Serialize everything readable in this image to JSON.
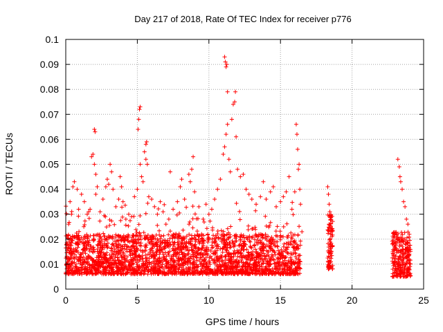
{
  "chart_data": {
    "type": "scatter",
    "title": "Day 217 of 2018, Rate Of TEC Index for receiver p776",
    "xlabel": "GPS time / hours",
    "ylabel": "ROTI / TECUs",
    "xlim": [
      0,
      25
    ],
    "ylim": [
      0,
      0.1
    ],
    "x_ticks": [
      "0",
      "5",
      "10",
      "15",
      "20",
      "25"
    ],
    "y_ticks": [
      "0",
      "0.01",
      "0.02",
      "0.03",
      "0.04",
      "0.05",
      "0.06",
      "0.07",
      "0.08",
      "0.09",
      "0.1"
    ],
    "grid": true,
    "marker": "+",
    "color": "#ff0000",
    "series": [
      {
        "points": [
          [
            0.2,
            0.026
          ],
          [
            0.3,
            0.035
          ],
          [
            0.5,
            0.041
          ],
          [
            0.6,
            0.043
          ],
          [
            0.8,
            0.04
          ],
          [
            0.2,
            0.02
          ],
          [
            0.4,
            0.03
          ],
          [
            0.9,
            0.032
          ],
          [
            1.1,
            0.038
          ],
          [
            1.3,
            0.035
          ],
          [
            1.5,
            0.03
          ],
          [
            1.6,
            0.031
          ],
          [
            1.7,
            0.032
          ],
          [
            1.8,
            0.053
          ],
          [
            1.9,
            0.054
          ],
          [
            2.0,
            0.064
          ],
          [
            2.05,
            0.063
          ],
          [
            2.0,
            0.05
          ],
          [
            2.1,
            0.046
          ],
          [
            2.2,
            0.041
          ],
          [
            2.1,
            0.038
          ],
          [
            2.4,
            0.031
          ],
          [
            2.6,
            0.036
          ],
          [
            2.8,
            0.041
          ],
          [
            2.9,
            0.044
          ],
          [
            3.0,
            0.042
          ],
          [
            3.1,
            0.05
          ],
          [
            3.2,
            0.047
          ],
          [
            3.3,
            0.04
          ],
          [
            3.5,
            0.033
          ],
          [
            3.7,
            0.036
          ],
          [
            3.8,
            0.045
          ],
          [
            3.9,
            0.041
          ],
          [
            4.0,
            0.035
          ],
          [
            4.2,
            0.028
          ],
          [
            4.4,
            0.03
          ],
          [
            4.6,
            0.029
          ],
          [
            4.8,
            0.037
          ],
          [
            5.0,
            0.04
          ],
          [
            5.05,
            0.064
          ],
          [
            5.1,
            0.068
          ],
          [
            5.15,
            0.072
          ],
          [
            5.2,
            0.073
          ],
          [
            5.2,
            0.05
          ],
          [
            5.3,
            0.045
          ],
          [
            5.4,
            0.043
          ],
          [
            5.5,
            0.055
          ],
          [
            5.6,
            0.058
          ],
          [
            5.65,
            0.059
          ],
          [
            5.6,
            0.052
          ],
          [
            5.7,
            0.05
          ],
          [
            5.8,
            0.037
          ],
          [
            6.0,
            0.036
          ],
          [
            6.2,
            0.033
          ],
          [
            6.4,
            0.03
          ],
          [
            6.6,
            0.035
          ],
          [
            6.8,
            0.031
          ],
          [
            7.0,
            0.026
          ],
          [
            7.2,
            0.028
          ],
          [
            7.3,
            0.047
          ],
          [
            7.5,
            0.032
          ],
          [
            7.8,
            0.035
          ],
          [
            8.0,
            0.041
          ],
          [
            8.1,
            0.044
          ],
          [
            8.3,
            0.036
          ],
          [
            8.6,
            0.046
          ],
          [
            8.8,
            0.048
          ],
          [
            8.9,
            0.053
          ],
          [
            8.7,
            0.043
          ],
          [
            9.0,
            0.039
          ],
          [
            9.3,
            0.033
          ],
          [
            9.6,
            0.028
          ],
          [
            9.8,
            0.034
          ],
          [
            10.0,
            0.03
          ],
          [
            10.2,
            0.032
          ],
          [
            10.4,
            0.036
          ],
          [
            10.6,
            0.04
          ],
          [
            10.8,
            0.044
          ],
          [
            11.0,
            0.054
          ],
          [
            11.1,
            0.057
          ],
          [
            11.2,
            0.062
          ],
          [
            11.3,
            0.066
          ],
          [
            11.1,
            0.093
          ],
          [
            11.15,
            0.091
          ],
          [
            11.2,
            0.089
          ],
          [
            11.25,
            0.09
          ],
          [
            11.3,
            0.079
          ],
          [
            11.4,
            0.052
          ],
          [
            11.5,
            0.047
          ],
          [
            11.6,
            0.068
          ],
          [
            11.7,
            0.074
          ],
          [
            11.8,
            0.075
          ],
          [
            11.85,
            0.079
          ],
          [
            11.9,
            0.061
          ],
          [
            12.0,
            0.048
          ],
          [
            12.2,
            0.045
          ],
          [
            12.4,
            0.046
          ],
          [
            12.6,
            0.04
          ],
          [
            12.8,
            0.038
          ],
          [
            13.0,
            0.036
          ],
          [
            13.3,
            0.034
          ],
          [
            13.6,
            0.037
          ],
          [
            13.8,
            0.043
          ],
          [
            14.0,
            0.036
          ],
          [
            14.3,
            0.039
          ],
          [
            14.5,
            0.041
          ],
          [
            14.7,
            0.033
          ],
          [
            15.0,
            0.035
          ],
          [
            15.2,
            0.037
          ],
          [
            15.4,
            0.039
          ],
          [
            15.6,
            0.045
          ],
          [
            15.8,
            0.032
          ],
          [
            16.0,
            0.039
          ],
          [
            16.1,
            0.066
          ],
          [
            16.15,
            0.062
          ],
          [
            16.2,
            0.056
          ],
          [
            16.25,
            0.048
          ],
          [
            16.3,
            0.05
          ],
          [
            16.35,
            0.04
          ],
          [
            16.4,
            0.034
          ],
          [
            16.5,
            0.023
          ],
          [
            18.3,
            0.041
          ],
          [
            18.35,
            0.038
          ],
          [
            18.4,
            0.034
          ],
          [
            18.45,
            0.031
          ],
          [
            18.5,
            0.029
          ],
          [
            18.4,
            0.026
          ],
          [
            18.55,
            0.023
          ],
          [
            23.2,
            0.052
          ],
          [
            23.3,
            0.049
          ],
          [
            23.35,
            0.045
          ],
          [
            23.4,
            0.043
          ],
          [
            23.5,
            0.04
          ],
          [
            23.6,
            0.035
          ],
          [
            23.7,
            0.033
          ],
          [
            23.8,
            0.028
          ],
          [
            23.9,
            0.026
          ],
          [
            24.0,
            0.022
          ]
        ]
      }
    ]
  }
}
